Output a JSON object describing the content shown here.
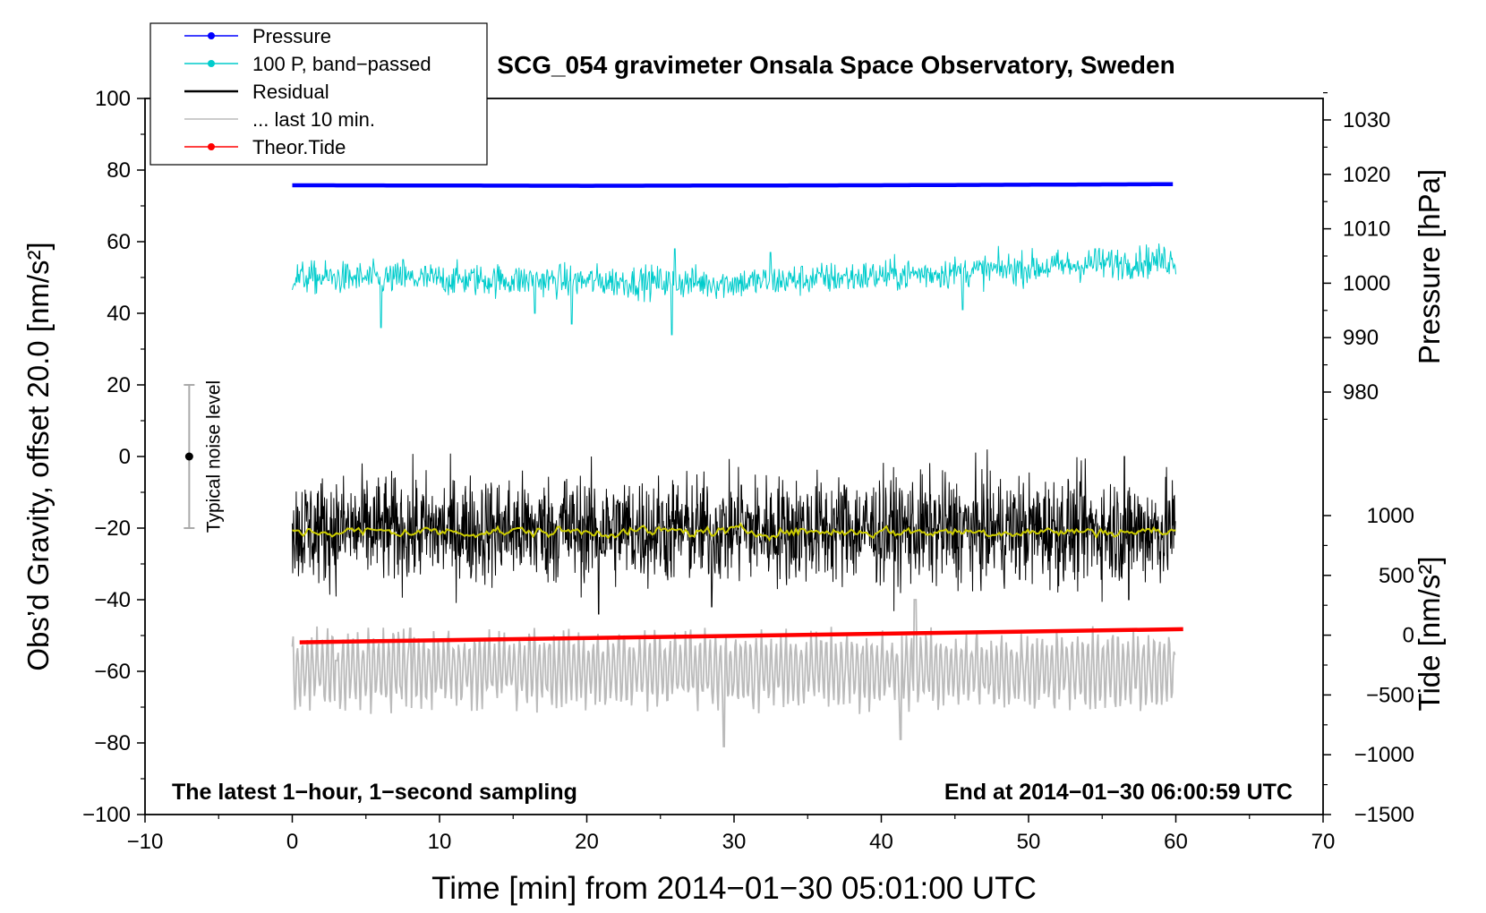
{
  "chart_data": {
    "type": "line",
    "title": "SCG_054 gravimeter Onsala Space Observatory, Sweden",
    "xlabel": "Time [min] from 2014−01−30 05:01:00 UTC",
    "ylabel_left": "Obs’d Gravity, offset 20.0 [nm/s²]",
    "ylabel_pressure": "Pressure [hPa]",
    "ylabel_tide": "Tide [nm/s²]",
    "xlim": [
      -10,
      70
    ],
    "ylim_left": [
      -100,
      100
    ],
    "x_ticks": [
      -10,
      0,
      10,
      20,
      30,
      40,
      50,
      60,
      70
    ],
    "x_tick_labels": [
      "−10",
      "0",
      "10",
      "20",
      "30",
      "40",
      "50",
      "60",
      "70"
    ],
    "y_left_ticks": [
      100,
      80,
      60,
      40,
      20,
      0,
      -20,
      -40,
      -60,
      -80,
      -100
    ],
    "y_left_tick_labels": [
      "100",
      "80",
      "60",
      "40",
      "20",
      "0",
      "−20",
      "−40",
      "−60",
      "−80",
      "−100"
    ],
    "pressure_axis": {
      "ticks": [
        1030,
        1020,
        1010,
        1000,
        990,
        980
      ],
      "tick_labels": [
        "1030",
        "1020",
        "1010",
        "1000",
        "990",
        "980"
      ],
      "left_value_map": {
        "hpa": [
          980,
          1030
        ],
        "left": [
          18,
          94
        ]
      }
    },
    "tide_axis": {
      "ticks": [
        1000,
        500,
        0,
        -500,
        -1000,
        -1500
      ],
      "tick_labels": [
        "1000",
        "500",
        "0",
        "−500",
        "−1000",
        "−1500"
      ],
      "left_value_map": {
        "nms2": [
          -1500,
          1000
        ],
        "left": [
          -100,
          -16.5
        ]
      }
    },
    "annotations": {
      "bottom_left": "The latest 1−hour, 1−second sampling",
      "bottom_right": "End at 2014−01−30 06:00:59 UTC",
      "noise_label": "Typical noise level",
      "noise_center": 0,
      "noise_range": [
        -20,
        20
      ],
      "noise_x": -7
    },
    "legend": {
      "position": "top-left",
      "entries": [
        {
          "label": "Pressure",
          "color": "#0000ff",
          "marker": true
        },
        {
          "label": "100 P, band−passed",
          "color": "#00cccc",
          "marker": true
        },
        {
          "label": "Residual",
          "color": "#000000",
          "marker": false
        },
        {
          "label": "... last 10 min.",
          "color": "#bbbbbb",
          "marker": false
        },
        {
          "label": "Theor.Tide",
          "color": "#ff0000",
          "marker": true
        }
      ]
    },
    "series": [
      {
        "name": "Pressure",
        "color": "#0000ff",
        "axis": "pressure",
        "x": [
          0,
          20,
          40,
          60
        ],
        "values": [
          1018.0,
          1017.9,
          1018.0,
          1018.2
        ]
      },
      {
        "name": "100 P, band−passed",
        "color": "#00cccc",
        "axis": "left",
        "center": [
          [
            0,
            50
          ],
          [
            30,
            48.5
          ],
          [
            45,
            51.5
          ],
          [
            60,
            55
          ]
        ],
        "noise_amplitude": 3,
        "spikes": [
          [
            6,
            36
          ],
          [
            7.5,
            55
          ],
          [
            16.5,
            40
          ],
          [
            19,
            37
          ],
          [
            25.8,
            34
          ],
          [
            26,
            58
          ],
          [
            32.5,
            57
          ],
          [
            45.5,
            41
          ],
          [
            54.5,
            58
          ]
        ]
      },
      {
        "name": "Residual",
        "color": "#000000",
        "axis": "left",
        "center": -20.5,
        "noise_amplitude": 10,
        "spikes": [
          [
            20.8,
            -44
          ],
          [
            28.5,
            -42
          ],
          [
            30.5,
            -8
          ],
          [
            56.5,
            0
          ],
          [
            56.8,
            -40
          ],
          [
            18.5,
            -7
          ],
          [
            37.5,
            -8
          ]
        ]
      },
      {
        "name": "Residual (smoothed)",
        "color": "#cccc00",
        "axis": "left",
        "center": -21,
        "noise_amplitude": 0.8
      },
      {
        "name": "... last 10 min.",
        "color": "#bbbbbb",
        "axis": "left",
        "center": -59.5,
        "noise_amplitude": 9,
        "spikes": [
          [
            29.3,
            -81
          ],
          [
            41.3,
            -79
          ],
          [
            42.3,
            -40
          ],
          [
            8,
            -48
          ],
          [
            3,
            -57
          ]
        ]
      },
      {
        "name": "Theor.Tide",
        "color": "#ff0000",
        "axis": "tide",
        "x": [
          0.5,
          60.5
        ],
        "values": [
          -60,
          50
        ]
      }
    ]
  }
}
